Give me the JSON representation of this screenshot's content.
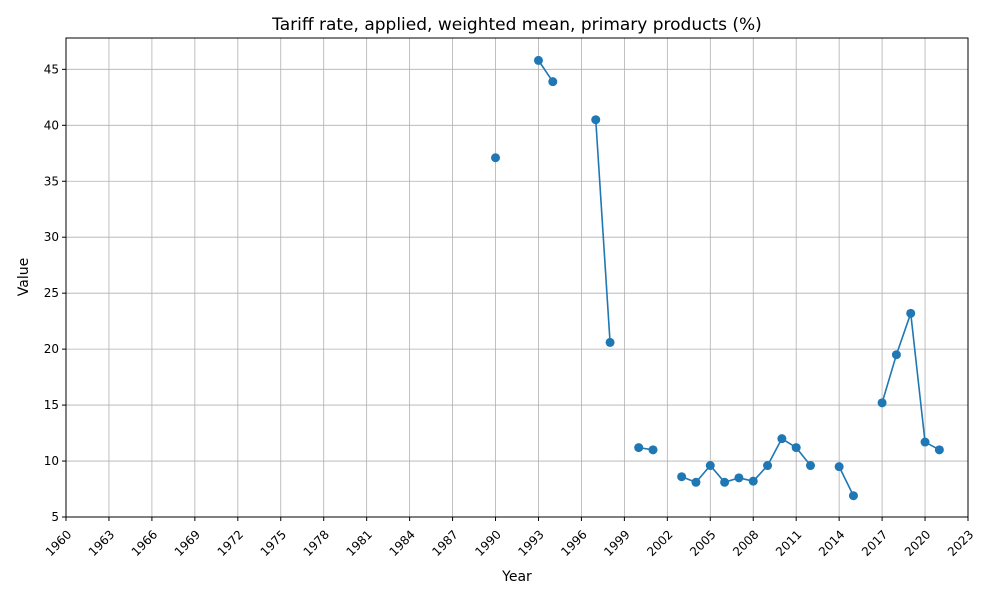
{
  "chart_data": {
    "type": "line",
    "title": "Tariff rate, applied, weighted mean, primary products (%)",
    "xlabel": "Year",
    "ylabel": "Value",
    "xlim": [
      1960,
      2023
    ],
    "ylim": [
      5,
      47.8
    ],
    "x_ticks": [
      1960,
      1963,
      1966,
      1969,
      1972,
      1975,
      1978,
      1981,
      1984,
      1987,
      1990,
      1993,
      1996,
      1999,
      2002,
      2005,
      2008,
      2011,
      2014,
      2017,
      2020,
      2023
    ],
    "y_ticks": [
      5,
      10,
      15,
      20,
      25,
      30,
      35,
      40,
      45
    ],
    "grid": true,
    "color": "#1f77b4",
    "series": [
      {
        "x": [
          1960,
          1961,
          1962,
          1963,
          1964,
          1965,
          1966,
          1967,
          1968,
          1969,
          1970,
          1971,
          1972,
          1973,
          1974,
          1975,
          1976,
          1977,
          1978,
          1979,
          1980,
          1981,
          1982,
          1983,
          1984,
          1985,
          1986,
          1987,
          1988,
          1989,
          1990,
          1991,
          1992,
          1993,
          1994,
          1995,
          1996,
          1997,
          1998,
          1999,
          2000,
          2001,
          2002,
          2003,
          2004,
          2005,
          2006,
          2007,
          2008,
          2009,
          2010,
          2011,
          2012,
          2013,
          2014,
          2015,
          2016,
          2017,
          2018,
          2019,
          2020,
          2021,
          2022
        ],
        "values": [
          null,
          null,
          null,
          null,
          null,
          null,
          null,
          null,
          null,
          null,
          null,
          null,
          null,
          null,
          null,
          null,
          null,
          null,
          null,
          null,
          null,
          null,
          null,
          null,
          null,
          null,
          null,
          null,
          null,
          null,
          37.1,
          null,
          null,
          45.8,
          43.9,
          null,
          null,
          40.5,
          20.6,
          null,
          11.2,
          11.0,
          null,
          8.6,
          8.1,
          9.6,
          8.1,
          8.5,
          8.2,
          9.6,
          12.0,
          11.2,
          9.6,
          null,
          9.5,
          6.9,
          null,
          15.2,
          19.5,
          23.2,
          11.7,
          11.0,
          null
        ]
      }
    ]
  }
}
